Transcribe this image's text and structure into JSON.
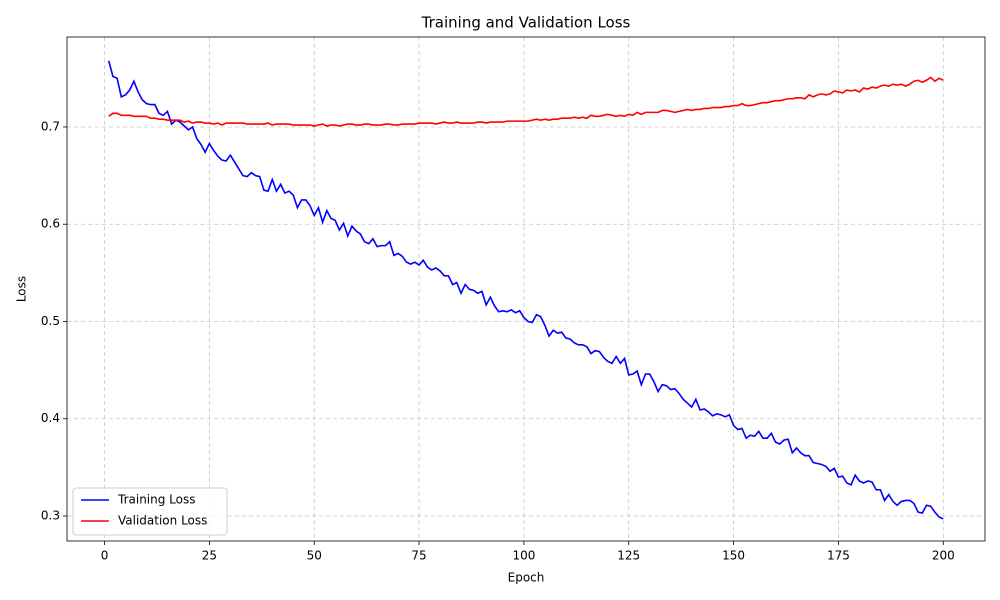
{
  "chart_data": {
    "type": "line",
    "title": "Training and Validation Loss",
    "xlabel": "Epoch",
    "ylabel": "Loss",
    "x": [
      1,
      2,
      3,
      4,
      5,
      6,
      7,
      8,
      9,
      10,
      11,
      12,
      13,
      14,
      15,
      16,
      17,
      18,
      19,
      20,
      21,
      22,
      23,
      24,
      25,
      26,
      27,
      28,
      29,
      30,
      31,
      32,
      33,
      34,
      35,
      36,
      37,
      38,
      39,
      40,
      41,
      42,
      43,
      44,
      45,
      46,
      47,
      48,
      49,
      50,
      51,
      52,
      53,
      54,
      55,
      56,
      57,
      58,
      59,
      60,
      61,
      62,
      63,
      64,
      65,
      66,
      67,
      68,
      69,
      70,
      71,
      72,
      73,
      74,
      75,
      76,
      77,
      78,
      79,
      80,
      81,
      82,
      83,
      84,
      85,
      86,
      87,
      88,
      89,
      90,
      91,
      92,
      93,
      94,
      95,
      96,
      97,
      98,
      99,
      100,
      101,
      102,
      103,
      104,
      105,
      106,
      107,
      108,
      109,
      110,
      111,
      112,
      113,
      114,
      115,
      116,
      117,
      118,
      119,
      120,
      121,
      122,
      123,
      124,
      125,
      126,
      127,
      128,
      129,
      130,
      131,
      132,
      133,
      134,
      135,
      136,
      137,
      138,
      139,
      140,
      141,
      142,
      143,
      144,
      145,
      146,
      147,
      148,
      149,
      150,
      151,
      152,
      153,
      154,
      155,
      156,
      157,
      158,
      159,
      160,
      161,
      162,
      163,
      164,
      165,
      166,
      167,
      168,
      169,
      170,
      171,
      172,
      173,
      174,
      175,
      176,
      177,
      178,
      179,
      180,
      181,
      182,
      183,
      184,
      185,
      186,
      187,
      188,
      189,
      190,
      191,
      192,
      193,
      194,
      195,
      196,
      197,
      198,
      199,
      200
    ],
    "series": [
      {
        "name": "Training Loss",
        "color": "#0000ff",
        "values": [
          0.768,
          0.752,
          0.75,
          0.731,
          0.733,
          0.738,
          0.747,
          0.736,
          0.728,
          0.724,
          0.723,
          0.723,
          0.714,
          0.712,
          0.716,
          0.703,
          0.707,
          0.705,
          0.701,
          0.697,
          0.7,
          0.688,
          0.682,
          0.674,
          0.683,
          0.676,
          0.67,
          0.666,
          0.665,
          0.671,
          0.664,
          0.657,
          0.65,
          0.649,
          0.653,
          0.65,
          0.649,
          0.635,
          0.634,
          0.646,
          0.634,
          0.641,
          0.632,
          0.634,
          0.63,
          0.617,
          0.625,
          0.625,
          0.619,
          0.609,
          0.617,
          0.602,
          0.614,
          0.606,
          0.604,
          0.594,
          0.601,
          0.588,
          0.598,
          0.593,
          0.59,
          0.582,
          0.58,
          0.585,
          0.577,
          0.578,
          0.578,
          0.582,
          0.568,
          0.57,
          0.567,
          0.561,
          0.559,
          0.561,
          0.558,
          0.563,
          0.556,
          0.553,
          0.555,
          0.552,
          0.547,
          0.547,
          0.538,
          0.54,
          0.529,
          0.538,
          0.533,
          0.532,
          0.529,
          0.531,
          0.517,
          0.525,
          0.516,
          0.51,
          0.511,
          0.51,
          0.512,
          0.509,
          0.511,
          0.504,
          0.5,
          0.499,
          0.507,
          0.505,
          0.496,
          0.485,
          0.491,
          0.488,
          0.489,
          0.483,
          0.482,
          0.478,
          0.476,
          0.476,
          0.474,
          0.467,
          0.47,
          0.469,
          0.463,
          0.459,
          0.457,
          0.464,
          0.457,
          0.462,
          0.445,
          0.446,
          0.449,
          0.435,
          0.446,
          0.446,
          0.438,
          0.428,
          0.435,
          0.434,
          0.43,
          0.431,
          0.426,
          0.42,
          0.416,
          0.412,
          0.42,
          0.409,
          0.41,
          0.407,
          0.403,
          0.405,
          0.404,
          0.402,
          0.404,
          0.393,
          0.389,
          0.39,
          0.38,
          0.383,
          0.382,
          0.387,
          0.38,
          0.38,
          0.385,
          0.376,
          0.374,
          0.378,
          0.379,
          0.365,
          0.37,
          0.365,
          0.362,
          0.362,
          0.355,
          0.354,
          0.353,
          0.351,
          0.346,
          0.349,
          0.34,
          0.341,
          0.334,
          0.332,
          0.342,
          0.336,
          0.334,
          0.336,
          0.335,
          0.327,
          0.327,
          0.316,
          0.322,
          0.315,
          0.311,
          0.315,
          0.316,
          0.316,
          0.313,
          0.304,
          0.303,
          0.311,
          0.31,
          0.304,
          0.299,
          0.297
        ]
      },
      {
        "name": "Validation Loss",
        "color": "#ff0000",
        "values": [
          0.711,
          0.714,
          0.714,
          0.712,
          0.712,
          0.712,
          0.711,
          0.711,
          0.711,
          0.711,
          0.709,
          0.709,
          0.708,
          0.708,
          0.707,
          0.707,
          0.707,
          0.707,
          0.705,
          0.706,
          0.704,
          0.705,
          0.705,
          0.704,
          0.704,
          0.703,
          0.704,
          0.702,
          0.704,
          0.704,
          0.704,
          0.704,
          0.704,
          0.703,
          0.703,
          0.703,
          0.703,
          0.703,
          0.704,
          0.702,
          0.703,
          0.703,
          0.703,
          0.703,
          0.702,
          0.702,
          0.702,
          0.702,
          0.702,
          0.701,
          0.702,
          0.703,
          0.701,
          0.702,
          0.702,
          0.701,
          0.702,
          0.703,
          0.703,
          0.702,
          0.702,
          0.703,
          0.703,
          0.702,
          0.702,
          0.702,
          0.703,
          0.703,
          0.702,
          0.702,
          0.703,
          0.703,
          0.703,
          0.703,
          0.704,
          0.704,
          0.704,
          0.704,
          0.703,
          0.704,
          0.705,
          0.704,
          0.704,
          0.705,
          0.704,
          0.704,
          0.704,
          0.704,
          0.705,
          0.705,
          0.704,
          0.705,
          0.705,
          0.705,
          0.705,
          0.706,
          0.706,
          0.706,
          0.706,
          0.706,
          0.706,
          0.707,
          0.708,
          0.707,
          0.708,
          0.707,
          0.708,
          0.708,
          0.709,
          0.709,
          0.709,
          0.71,
          0.709,
          0.71,
          0.709,
          0.712,
          0.711,
          0.711,
          0.712,
          0.713,
          0.712,
          0.711,
          0.712,
          0.711,
          0.713,
          0.712,
          0.715,
          0.713,
          0.715,
          0.715,
          0.715,
          0.715,
          0.717,
          0.717,
          0.716,
          0.715,
          0.716,
          0.717,
          0.718,
          0.717,
          0.718,
          0.718,
          0.719,
          0.719,
          0.72,
          0.72,
          0.72,
          0.721,
          0.721,
          0.722,
          0.722,
          0.724,
          0.722,
          0.722,
          0.723,
          0.724,
          0.725,
          0.725,
          0.726,
          0.727,
          0.727,
          0.728,
          0.729,
          0.729,
          0.73,
          0.73,
          0.729,
          0.733,
          0.731,
          0.733,
          0.734,
          0.733,
          0.734,
          0.737,
          0.736,
          0.735,
          0.738,
          0.737,
          0.738,
          0.736,
          0.74,
          0.739,
          0.741,
          0.74,
          0.742,
          0.743,
          0.742,
          0.744,
          0.743,
          0.744,
          0.742,
          0.744,
          0.747,
          0.748,
          0.746,
          0.748,
          0.751,
          0.747,
          0.75,
          0.748
        ]
      }
    ],
    "xlim": [
      -8.95,
      209.95
    ],
    "xticks": [
      0,
      25,
      50,
      75,
      100,
      125,
      150,
      175,
      200
    ],
    "ylim": [
      0.2743,
      0.7925
    ],
    "yticks": [
      0.3,
      0.4,
      0.5,
      0.6,
      0.7
    ],
    "grid": true,
    "legend": "lower left"
  }
}
